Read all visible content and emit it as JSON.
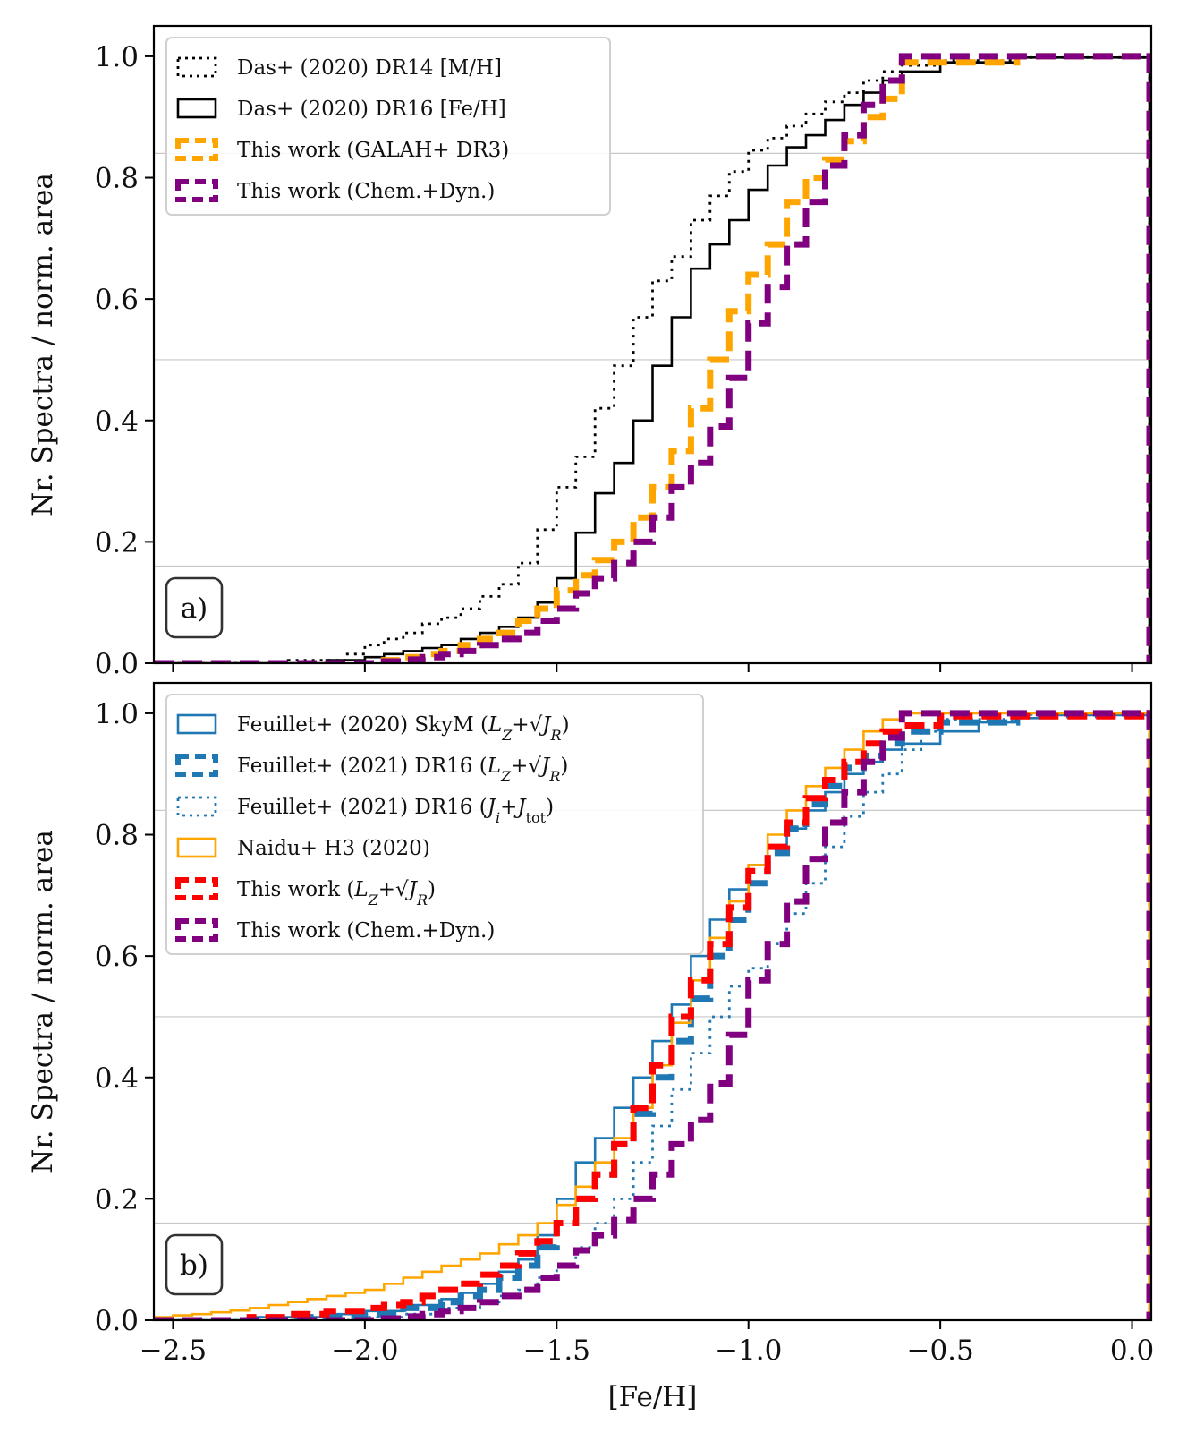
{
  "chart_data": [
    {
      "type": "line",
      "panel_label": "a)",
      "xlabel": "",
      "ylabel": "Nr. Spectra / norm. area",
      "xlim": [
        -2.55,
        0.05
      ],
      "ylim": [
        0.0,
        1.05
      ],
      "x_ticks": [
        -2.5,
        -2.0,
        -1.5,
        -1.0,
        -0.5,
        0.0
      ],
      "x_tick_labels": [
        "",
        "",
        "",
        "",
        "",
        ""
      ],
      "y_ticks": [
        0.0,
        0.2,
        0.4,
        0.6,
        0.8,
        1.0
      ],
      "y_tick_labels": [
        "0.0",
        "0.2",
        "0.4",
        "0.6",
        "0.8",
        "1.0"
      ],
      "reference_lines": [
        0.16,
        0.5,
        0.84
      ],
      "legend_position": "top-left",
      "series": [
        {
          "name": "Das+ (2020) DR14 [M/H]",
          "color": "#000000",
          "style": "dotted",
          "x": [
            -2.55,
            -2.2,
            -2.05,
            -2.0,
            -1.95,
            -1.9,
            -1.85,
            -1.8,
            -1.75,
            -1.7,
            -1.65,
            -1.6,
            -1.55,
            -1.5,
            -1.45,
            -1.4,
            -1.35,
            -1.3,
            -1.25,
            -1.2,
            -1.15,
            -1.1,
            -1.05,
            -1.0,
            -0.95,
            -0.9,
            -0.85,
            -0.8,
            -0.75,
            -0.7,
            -0.65,
            -0.6,
            -0.5,
            -0.3,
            0.05
          ],
          "values": [
            0.0,
            0.005,
            0.015,
            0.03,
            0.04,
            0.05,
            0.065,
            0.075,
            0.09,
            0.11,
            0.13,
            0.165,
            0.22,
            0.29,
            0.34,
            0.42,
            0.49,
            0.57,
            0.63,
            0.67,
            0.73,
            0.77,
            0.81,
            0.845,
            0.865,
            0.885,
            0.905,
            0.925,
            0.94,
            0.96,
            0.975,
            0.985,
            0.993,
            0.998,
            1.0
          ]
        },
        {
          "name": "Das+ (2020) DR16 [Fe/H]",
          "color": "#000000",
          "style": "solid",
          "x": [
            -2.55,
            -2.1,
            -2.0,
            -1.95,
            -1.9,
            -1.85,
            -1.8,
            -1.75,
            -1.7,
            -1.65,
            -1.6,
            -1.55,
            -1.5,
            -1.45,
            -1.4,
            -1.35,
            -1.3,
            -1.25,
            -1.2,
            -1.15,
            -1.1,
            -1.05,
            -1.0,
            -0.95,
            -0.9,
            -0.85,
            -0.8,
            -0.75,
            -0.7,
            -0.65,
            -0.6,
            -0.5,
            -0.3,
            0.05
          ],
          "values": [
            0.0,
            0.005,
            0.01,
            0.015,
            0.02,
            0.025,
            0.03,
            0.04,
            0.05,
            0.06,
            0.075,
            0.1,
            0.14,
            0.215,
            0.28,
            0.33,
            0.4,
            0.49,
            0.57,
            0.65,
            0.69,
            0.73,
            0.78,
            0.82,
            0.85,
            0.87,
            0.895,
            0.92,
            0.94,
            0.96,
            0.975,
            0.99,
            0.998,
            1.0
          ]
        },
        {
          "name": "This work (GALAH+ DR3)",
          "color": "#FFA500",
          "style": "dashed",
          "x": [
            -2.55,
            -1.95,
            -1.9,
            -1.85,
            -1.8,
            -1.75,
            -1.7,
            -1.65,
            -1.6,
            -1.55,
            -1.5,
            -1.45,
            -1.4,
            -1.35,
            -1.3,
            -1.25,
            -1.2,
            -1.15,
            -1.1,
            -1.05,
            -1.0,
            -0.95,
            -0.9,
            -0.85,
            -0.8,
            -0.75,
            -0.7,
            -0.65,
            -0.6,
            -0.3,
            0.05
          ],
          "values": [
            0.0,
            0.005,
            0.01,
            0.015,
            0.02,
            0.03,
            0.04,
            0.05,
            0.07,
            0.09,
            0.12,
            0.145,
            0.17,
            0.2,
            0.24,
            0.29,
            0.35,
            0.42,
            0.5,
            0.58,
            0.64,
            0.69,
            0.76,
            0.8,
            0.83,
            0.86,
            0.9,
            0.93,
            0.99,
            1.0,
            1.0
          ]
        },
        {
          "name": "This work (Chem.+Dyn.)",
          "color": "#800080",
          "style": "dashed",
          "x": [
            -2.55,
            -1.95,
            -1.9,
            -1.85,
            -1.8,
            -1.75,
            -1.7,
            -1.65,
            -1.6,
            -1.55,
            -1.5,
            -1.45,
            -1.4,
            -1.35,
            -1.3,
            -1.25,
            -1.2,
            -1.15,
            -1.1,
            -1.05,
            -1.0,
            -0.95,
            -0.9,
            -0.85,
            -0.8,
            -0.75,
            -0.7,
            -0.65,
            -0.6,
            0.05
          ],
          "values": [
            0.0,
            0.003,
            0.006,
            0.01,
            0.015,
            0.02,
            0.03,
            0.04,
            0.05,
            0.07,
            0.09,
            0.115,
            0.14,
            0.165,
            0.2,
            0.24,
            0.29,
            0.33,
            0.39,
            0.47,
            0.56,
            0.62,
            0.69,
            0.76,
            0.82,
            0.87,
            0.92,
            0.96,
            1.0,
            1.0
          ]
        }
      ]
    },
    {
      "type": "line",
      "panel_label": "b)",
      "xlabel": "[Fe/H]",
      "ylabel": "Nr. Spectra / norm. area",
      "xlim": [
        -2.55,
        0.05
      ],
      "ylim": [
        0.0,
        1.05
      ],
      "x_ticks": [
        -2.5,
        -2.0,
        -1.5,
        -1.0,
        -0.5,
        0.0
      ],
      "x_tick_labels": [
        "−2.5",
        "−2.0",
        "−1.5",
        "−1.0",
        "−0.5",
        "0.0"
      ],
      "y_ticks": [
        0.0,
        0.2,
        0.4,
        0.6,
        0.8,
        1.0
      ],
      "y_tick_labels": [
        "0.0",
        "0.2",
        "0.4",
        "0.6",
        "0.8",
        "1.0"
      ],
      "reference_lines": [
        0.16,
        0.5,
        0.84
      ],
      "legend_position": "top-left",
      "series": [
        {
          "name": "Feuillet+ (2020) SkyM (L_Z+√J_R)",
          "color": "#1F77B4",
          "style": "solid",
          "x": [
            -2.55,
            -2.3,
            -2.1,
            -2.0,
            -1.9,
            -1.8,
            -1.75,
            -1.7,
            -1.65,
            -1.6,
            -1.55,
            -1.5,
            -1.45,
            -1.4,
            -1.35,
            -1.3,
            -1.25,
            -1.2,
            -1.15,
            -1.1,
            -1.05,
            -1.0,
            -0.95,
            -0.9,
            -0.85,
            -0.8,
            -0.75,
            -0.7,
            -0.65,
            -0.6,
            -0.5,
            -0.4,
            -0.3,
            -0.2,
            0.05
          ],
          "values": [
            0.0,
            0.005,
            0.01,
            0.015,
            0.025,
            0.035,
            0.045,
            0.06,
            0.08,
            0.1,
            0.14,
            0.2,
            0.26,
            0.3,
            0.35,
            0.4,
            0.46,
            0.52,
            0.6,
            0.66,
            0.71,
            0.75,
            0.78,
            0.81,
            0.84,
            0.87,
            0.9,
            0.92,
            0.94,
            0.95,
            0.97,
            0.985,
            0.992,
            0.997,
            1.0
          ]
        },
        {
          "name": "Feuillet+ (2021) DR16 (L_Z+√J_R)",
          "color": "#1F77B4",
          "style": "dashed",
          "x": [
            -2.55,
            -2.2,
            -2.0,
            -1.9,
            -1.8,
            -1.75,
            -1.7,
            -1.65,
            -1.6,
            -1.55,
            -1.5,
            -1.45,
            -1.4,
            -1.35,
            -1.3,
            -1.25,
            -1.2,
            -1.15,
            -1.1,
            -1.05,
            -1.0,
            -0.95,
            -0.9,
            -0.85,
            -0.8,
            -0.75,
            -0.7,
            -0.65,
            -0.6,
            -0.5,
            -0.3,
            0.05
          ],
          "values": [
            0.0,
            0.005,
            0.01,
            0.02,
            0.03,
            0.04,
            0.05,
            0.07,
            0.09,
            0.12,
            0.16,
            0.2,
            0.24,
            0.29,
            0.34,
            0.4,
            0.46,
            0.53,
            0.6,
            0.66,
            0.72,
            0.77,
            0.81,
            0.85,
            0.88,
            0.91,
            0.93,
            0.95,
            0.97,
            0.985,
            0.997,
            1.0
          ]
        },
        {
          "name": "Feuillet+ (2021) DR16 (J_i+J_tot)",
          "color": "#1F77B4",
          "style": "dotted",
          "x": [
            -2.55,
            -2.0,
            -1.9,
            -1.8,
            -1.7,
            -1.65,
            -1.6,
            -1.55,
            -1.5,
            -1.45,
            -1.4,
            -1.35,
            -1.3,
            -1.25,
            -1.2,
            -1.15,
            -1.1,
            -1.05,
            -1.0,
            -0.95,
            -0.9,
            -0.85,
            -0.8,
            -0.75,
            -0.7,
            -0.65,
            -0.6,
            -0.55,
            -0.5,
            -0.3,
            0.05
          ],
          "values": [
            0.0,
            0.005,
            0.01,
            0.02,
            0.03,
            0.04,
            0.05,
            0.07,
            0.09,
            0.12,
            0.16,
            0.2,
            0.26,
            0.32,
            0.38,
            0.44,
            0.5,
            0.55,
            0.58,
            0.62,
            0.67,
            0.72,
            0.78,
            0.83,
            0.87,
            0.9,
            0.94,
            0.97,
            0.99,
            0.998,
            1.0
          ]
        },
        {
          "name": "Naidu+ H3 (2020)",
          "color": "#FFA500",
          "style": "solid",
          "x": [
            -2.55,
            -2.5,
            -2.45,
            -2.4,
            -2.35,
            -2.3,
            -2.25,
            -2.2,
            -2.15,
            -2.1,
            -2.05,
            -2.0,
            -1.95,
            -1.9,
            -1.85,
            -1.8,
            -1.75,
            -1.7,
            -1.65,
            -1.6,
            -1.55,
            -1.5,
            -1.45,
            -1.4,
            -1.35,
            -1.3,
            -1.25,
            -1.2,
            -1.15,
            -1.1,
            -1.05,
            -1.0,
            -0.95,
            -0.9,
            -0.85,
            -0.8,
            -0.75,
            -0.7,
            -0.65,
            -0.6,
            0.05
          ],
          "values": [
            0.005,
            0.008,
            0.01,
            0.013,
            0.016,
            0.02,
            0.025,
            0.03,
            0.035,
            0.04,
            0.045,
            0.05,
            0.06,
            0.07,
            0.08,
            0.09,
            0.1,
            0.11,
            0.125,
            0.14,
            0.16,
            0.19,
            0.22,
            0.26,
            0.3,
            0.35,
            0.42,
            0.49,
            0.56,
            0.63,
            0.69,
            0.75,
            0.8,
            0.84,
            0.88,
            0.91,
            0.94,
            0.97,
            0.99,
            1.0,
            1.0
          ]
        },
        {
          "name": "This work (L_Z+√J_R)",
          "color": "#FF0000",
          "style": "dashed",
          "x": [
            -2.55,
            -2.3,
            -2.2,
            -2.1,
            -2.0,
            -1.95,
            -1.9,
            -1.85,
            -1.8,
            -1.75,
            -1.7,
            -1.65,
            -1.6,
            -1.55,
            -1.5,
            -1.45,
            -1.4,
            -1.35,
            -1.3,
            -1.25,
            -1.2,
            -1.15,
            -1.1,
            -1.05,
            -1.0,
            -0.95,
            -0.9,
            -0.85,
            -0.8,
            -0.75,
            -0.7,
            -0.65,
            -0.6,
            -0.5,
            0.05
          ],
          "values": [
            0.0,
            0.005,
            0.01,
            0.015,
            0.02,
            0.025,
            0.03,
            0.04,
            0.05,
            0.06,
            0.075,
            0.09,
            0.11,
            0.13,
            0.16,
            0.2,
            0.24,
            0.29,
            0.35,
            0.42,
            0.5,
            0.56,
            0.62,
            0.68,
            0.74,
            0.78,
            0.82,
            0.86,
            0.89,
            0.92,
            0.95,
            0.97,
            0.98,
            0.995,
            1.0
          ]
        },
        {
          "name": "This work (Chem.+Dyn.)",
          "color": "#800080",
          "style": "dashed",
          "x": [
            -2.55,
            -1.95,
            -1.9,
            -1.85,
            -1.8,
            -1.75,
            -1.7,
            -1.65,
            -1.6,
            -1.55,
            -1.5,
            -1.45,
            -1.4,
            -1.35,
            -1.3,
            -1.25,
            -1.2,
            -1.15,
            -1.1,
            -1.05,
            -1.0,
            -0.95,
            -0.9,
            -0.85,
            -0.8,
            -0.75,
            -0.7,
            -0.65,
            -0.6,
            0.05
          ],
          "values": [
            0.0,
            0.003,
            0.006,
            0.01,
            0.015,
            0.02,
            0.03,
            0.04,
            0.05,
            0.07,
            0.09,
            0.115,
            0.14,
            0.165,
            0.2,
            0.24,
            0.29,
            0.33,
            0.39,
            0.47,
            0.56,
            0.62,
            0.69,
            0.76,
            0.82,
            0.87,
            0.92,
            0.96,
            1.0,
            1.0
          ]
        }
      ]
    }
  ]
}
